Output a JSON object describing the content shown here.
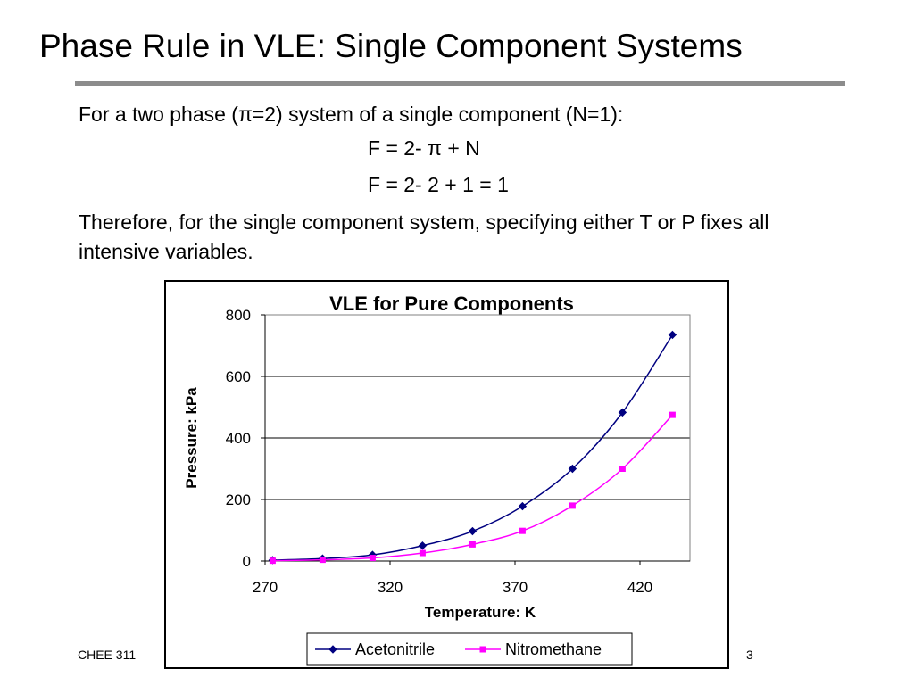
{
  "slide": {
    "title": "Phase Rule in VLE: Single Component Systems",
    "intro": "For a two phase (π=2) system of a single component (N=1):",
    "equation_1": "F  = 2- π + N",
    "equation_2": "F  = 2- 2 + 1 = 1",
    "conclusion": "Therefore, for the single component system, specifying either T or P fixes all intensive variables.",
    "footer_left": "CHEE 311",
    "page_number": "3"
  },
  "chart_data": {
    "type": "line",
    "title": "VLE for Pure Components",
    "xlabel": "Temperature: K",
    "ylabel": "Pressure: kPa",
    "xlim": [
      270,
      440
    ],
    "ylim": [
      0,
      800
    ],
    "x_ticks": [
      270,
      320,
      370,
      420
    ],
    "y_ticks": [
      0,
      200,
      400,
      600,
      800
    ],
    "grid": "horizontal",
    "legend_position": "bottom",
    "series": [
      {
        "name": "Acetonitrile",
        "color": "#000080",
        "marker": "diamond",
        "x": [
          273,
          293,
          313,
          333,
          353,
          373,
          393,
          413,
          433
        ],
        "y": [
          3,
          8,
          20,
          50,
          97,
          178,
          300,
          483,
          735
        ]
      },
      {
        "name": "Nitromethane",
        "color": "#ff00ff",
        "marker": "square",
        "x": [
          273,
          293,
          313,
          333,
          353,
          373,
          393,
          413,
          433
        ],
        "y": [
          1,
          4,
          10,
          26,
          54,
          98,
          180,
          300,
          475
        ]
      }
    ]
  }
}
